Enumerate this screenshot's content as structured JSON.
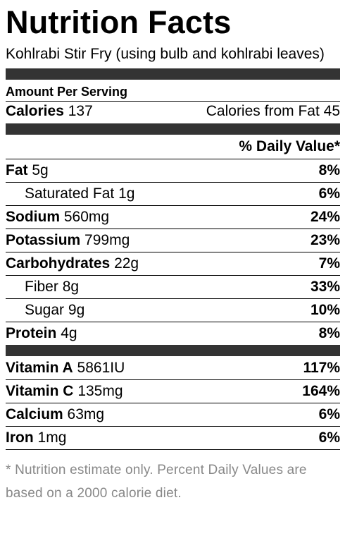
{
  "title": "Nutrition Facts",
  "recipe_name": "Kohlrabi Stir Fry (using bulb and kohlrabi leaves)",
  "amount_per_serving": "Amount Per Serving",
  "calories": {
    "label": "Calories",
    "value": "137",
    "from_fat_label": "Calories from Fat",
    "from_fat_value": "45"
  },
  "daily_value_header": "% Daily Value*",
  "nutrients": [
    {
      "name": "Fat",
      "amount": "5g",
      "dv": "8%"
    },
    {
      "name": "Saturated Fat",
      "amount": "1g",
      "dv": "6%"
    },
    {
      "name": "Sodium",
      "amount": "560mg",
      "dv": "24%"
    },
    {
      "name": "Potassium",
      "amount": "799mg",
      "dv": "23%"
    },
    {
      "name": "Carbohydrates",
      "amount": "22g",
      "dv": "7%"
    },
    {
      "name": "Fiber",
      "amount": "8g",
      "dv": "33%"
    },
    {
      "name": "Sugar",
      "amount": "9g",
      "dv": "10%"
    },
    {
      "name": "Protein",
      "amount": "4g",
      "dv": "8%"
    }
  ],
  "vitamins": [
    {
      "name": "Vitamin A",
      "amount": "5861IU",
      "dv": "117%"
    },
    {
      "name": "Vitamin C",
      "amount": "135mg",
      "dv": "164%"
    },
    {
      "name": "Calcium",
      "amount": "63mg",
      "dv": "6%"
    },
    {
      "name": "Iron",
      "amount": "1mg",
      "dv": "6%"
    }
  ],
  "footnote": "* Nutrition estimate only. Percent Daily Values are based on a 2000 calorie diet.",
  "colors": {
    "bar": "#333333",
    "footnote": "#888888"
  }
}
